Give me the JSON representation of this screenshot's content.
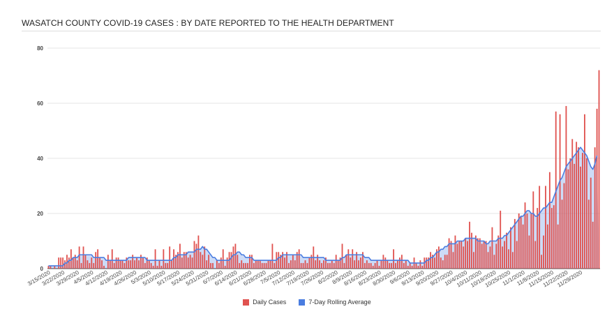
{
  "chart_data": {
    "type": "bar",
    "title": "WASATCH COUNTY COVID-19 CASES : BY DATE REPORTED TO THE HEALTH DEPARTMENT",
    "xlabel": "",
    "ylabel": "",
    "ylim": [
      0,
      80
    ],
    "yticks": [
      0,
      20,
      40,
      60,
      80
    ],
    "grid": true,
    "legend_position": "bottom",
    "start_date": "3/15/2020",
    "end_date": "12/1/2020",
    "tick_labels": [
      "3/15/2020",
      "3/22/2020",
      "3/29/2020",
      "4/5/2020",
      "4/12/2020",
      "4/19/2020",
      "4/26/2020",
      "5/3/2020",
      "5/10/2020",
      "5/17/2020",
      "5/24/2020",
      "5/31/2020",
      "6/7/2020",
      "6/14/2020",
      "6/21/2020",
      "6/28/2020",
      "7/5/2020",
      "7/12/2020",
      "7/19/2020",
      "7/26/2020",
      "8/2/2020",
      "8/9/2020",
      "8/16/2020",
      "8/23/2020",
      "8/30/2020",
      "9/6/2020",
      "9/13/2020",
      "9/20/2020",
      "9/27/2020",
      "10/4/2020",
      "10/11/2020",
      "10/18/2020",
      "10/25/2020",
      "11/1/2020",
      "11/8/2020",
      "11/15/2020",
      "11/22/2020",
      "11/29/2020"
    ],
    "series": [
      {
        "name": "Daily Cases",
        "type": "bar",
        "color": "#e0524f",
        "values": [
          1,
          1,
          0,
          1,
          0,
          4,
          4,
          4,
          3,
          5,
          4,
          7,
          4,
          5,
          3,
          8,
          2,
          8,
          5,
          3,
          2,
          4,
          2,
          6,
          7,
          4,
          3,
          1,
          0,
          5,
          3,
          7,
          2,
          4,
          4,
          3,
          3,
          2,
          4,
          3,
          3,
          5,
          3,
          4,
          3,
          5,
          4,
          2,
          4,
          3,
          2,
          1,
          7,
          1,
          3,
          1,
          7,
          2,
          2,
          8,
          3,
          7,
          5,
          6,
          9,
          4,
          6,
          6,
          4,
          5,
          4,
          10,
          9,
          12,
          6,
          5,
          8,
          3,
          5,
          2,
          2,
          0,
          3,
          2,
          4,
          7,
          1,
          4,
          6,
          6,
          8,
          9,
          5,
          2,
          3,
          2,
          2,
          2,
          5,
          5,
          2,
          3,
          3,
          3,
          2,
          2,
          2,
          3,
          3,
          9,
          2,
          6,
          6,
          5,
          6,
          4,
          6,
          2,
          3,
          5,
          3,
          6,
          7,
          2,
          2,
          3,
          2,
          4,
          5,
          8,
          3,
          5,
          3,
          2,
          3,
          4,
          2,
          2,
          3,
          2,
          5,
          3,
          4,
          9,
          2,
          5,
          7,
          4,
          7,
          3,
          6,
          3,
          4,
          6,
          2,
          3,
          2,
          2,
          1,
          2,
          3,
          1,
          3,
          5,
          4,
          3,
          2,
          2,
          7,
          2,
          3,
          4,
          5,
          2,
          3,
          1,
          2,
          1,
          4,
          2,
          1,
          3,
          1,
          4,
          4,
          4,
          6,
          5,
          4,
          7,
          8,
          4,
          3,
          5,
          5,
          11,
          10,
          6,
          12,
          9,
          10,
          10,
          8,
          11,
          10,
          17,
          13,
          6,
          12,
          11,
          11,
          9,
          10,
          10,
          6,
          8,
          15,
          5,
          9,
          12,
          21,
          8,
          10,
          13,
          7,
          15,
          6,
          18,
          10,
          20,
          19,
          16,
          24,
          20,
          12,
          20,
          28,
          10,
          22,
          30,
          5,
          12,
          30,
          16,
          35,
          22,
          23,
          57,
          16,
          56,
          25,
          31,
          59,
          36,
          40,
          47,
          38,
          46,
          44,
          37,
          42,
          56,
          40,
          25,
          33,
          17,
          44,
          58,
          72
        ]
      },
      {
        "name": "7-Day Rolling Average",
        "type": "line",
        "color": "#4a7de0",
        "values": [
          1,
          1,
          1,
          1,
          1,
          1,
          1,
          1,
          2,
          2,
          3,
          3,
          4,
          4,
          4,
          5,
          5,
          5,
          5,
          5,
          5,
          5,
          4,
          4,
          4,
          4,
          4,
          4,
          3,
          3,
          3,
          3,
          3,
          3,
          3,
          3,
          3,
          3,
          3,
          4,
          4,
          4,
          4,
          4,
          4,
          4,
          4,
          4,
          3,
          3,
          3,
          3,
          3,
          3,
          3,
          3,
          3,
          3,
          3,
          3,
          3,
          4,
          4,
          5,
          5,
          5,
          5,
          5,
          6,
          6,
          6,
          6,
          7,
          7,
          7,
          8,
          7,
          7,
          6,
          5,
          4,
          4,
          3,
          3,
          3,
          3,
          3,
          3,
          3,
          4,
          5,
          5,
          6,
          6,
          5,
          5,
          4,
          4,
          4,
          4,
          3,
          3,
          3,
          3,
          3,
          3,
          3,
          3,
          3,
          3,
          3,
          3,
          4,
          4,
          5,
          5,
          5,
          5,
          5,
          5,
          5,
          5,
          5,
          5,
          4,
          4,
          4,
          4,
          4,
          4,
          4,
          4,
          4,
          4,
          4,
          3,
          3,
          3,
          3,
          3,
          3,
          3,
          3,
          4,
          4,
          5,
          5,
          5,
          5,
          5,
          5,
          5,
          5,
          5,
          4,
          4,
          4,
          3,
          3,
          3,
          3,
          3,
          3,
          3,
          3,
          3,
          3,
          3,
          3,
          3,
          3,
          3,
          3,
          3,
          3,
          3,
          2,
          2,
          2,
          2,
          2,
          2,
          2,
          2,
          3,
          3,
          4,
          4,
          5,
          6,
          6,
          7,
          7,
          8,
          8,
          9,
          9,
          9,
          9,
          10,
          10,
          10,
          10,
          11,
          11,
          11,
          11,
          11,
          11,
          10,
          10,
          10,
          10,
          9,
          9,
          10,
          10,
          10,
          10,
          11,
          11,
          11,
          12,
          12,
          13,
          14,
          15,
          16,
          17,
          18,
          19,
          19,
          20,
          21,
          21,
          20,
          20,
          19,
          19,
          20,
          21,
          22,
          22,
          23,
          24,
          24,
          26,
          28,
          30,
          32,
          33,
          35,
          37,
          38,
          39,
          40,
          41,
          42,
          43,
          44,
          43,
          42,
          41,
          39,
          37,
          36,
          38,
          41
        ]
      }
    ]
  }
}
